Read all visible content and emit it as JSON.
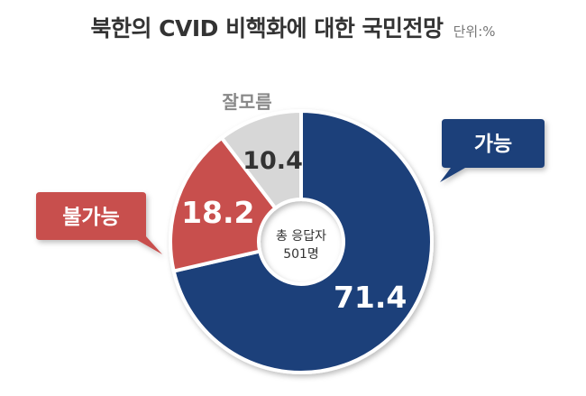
{
  "title": "북한의 CVID 비핵화에 대한 국민전망",
  "unit": "단위:%",
  "center_label": [
    "총 응답자",
    "501명"
  ],
  "colors": {
    "possible": "#1f3f7a",
    "impossible": "#c8504e",
    "unsure": "#d7d7d7",
    "value_text_light": "#ffffff",
    "value_text_dark": "#333333",
    "unsure_label": "#888888"
  },
  "chart_data": {
    "type": "pie",
    "title": "북한의 CVID 비핵화에 대한 국민전망",
    "unit": "%",
    "categories": [
      "가능",
      "불가능",
      "잘모름"
    ],
    "values": [
      71.4,
      18.2,
      10.4
    ]
  }
}
